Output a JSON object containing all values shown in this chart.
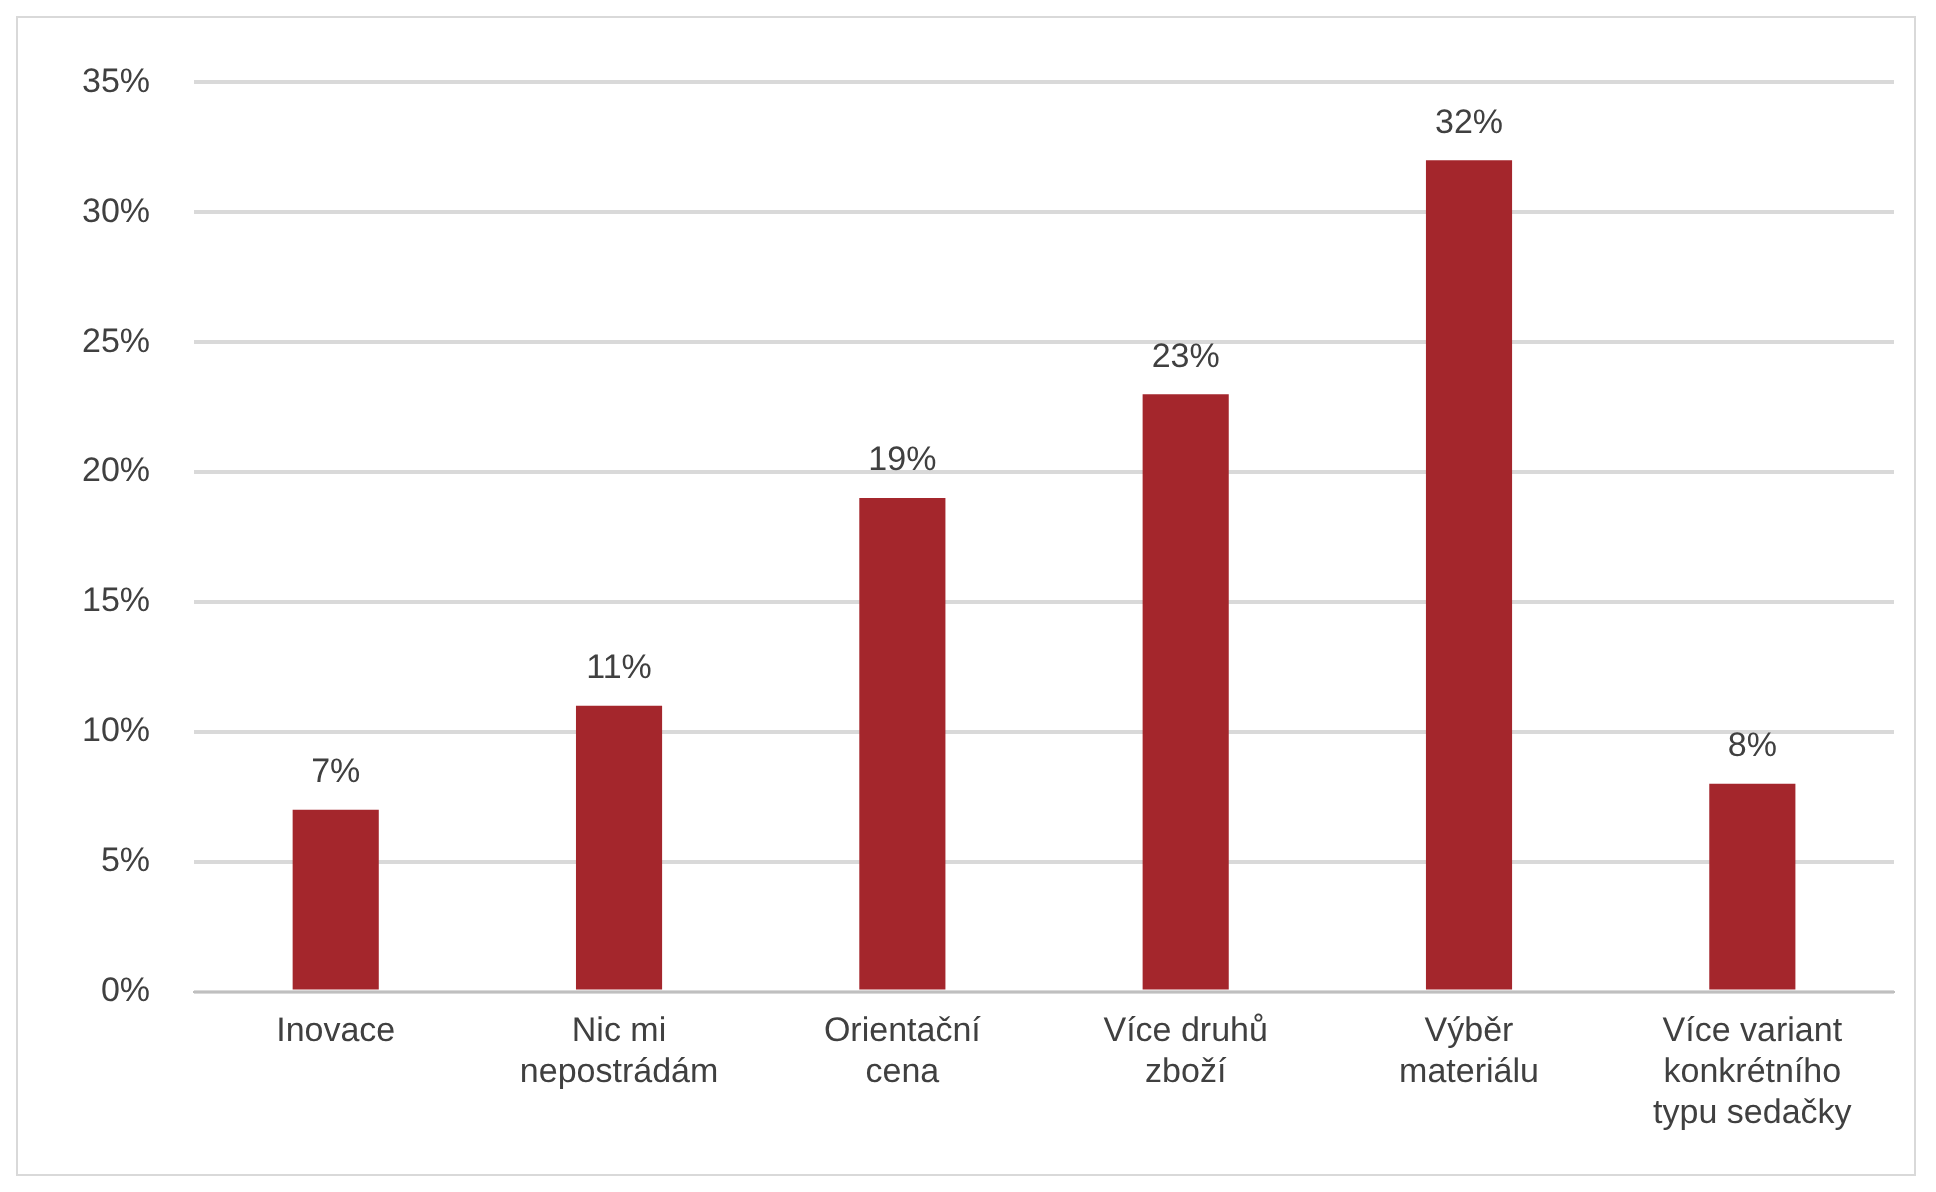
{
  "chart_data": {
    "type": "bar",
    "categories": [
      "Inovace",
      "Nic mi nepostrádám",
      "Orientační cena",
      "Více druhů zboží",
      "Výběr materiálu",
      "Více variant konkrétního typu sedačky"
    ],
    "values": [
      7,
      11,
      19,
      23,
      32,
      8
    ],
    "value_labels": [
      "7%",
      "11%",
      "19%",
      "23%",
      "32%",
      "8%"
    ],
    "color": "#a4262c",
    "ylim": [
      0,
      35
    ],
    "yticks": [
      {
        "value": 0,
        "label": "0%"
      },
      {
        "value": 5,
        "label": "5%"
      },
      {
        "value": 10,
        "label": "10%"
      },
      {
        "value": 15,
        "label": "15%"
      },
      {
        "value": 20,
        "label": "20%"
      },
      {
        "value": 25,
        "label": "25%"
      },
      {
        "value": 30,
        "label": "30%"
      },
      {
        "value": 35,
        "label": "35%"
      }
    ],
    "grid": "y"
  }
}
